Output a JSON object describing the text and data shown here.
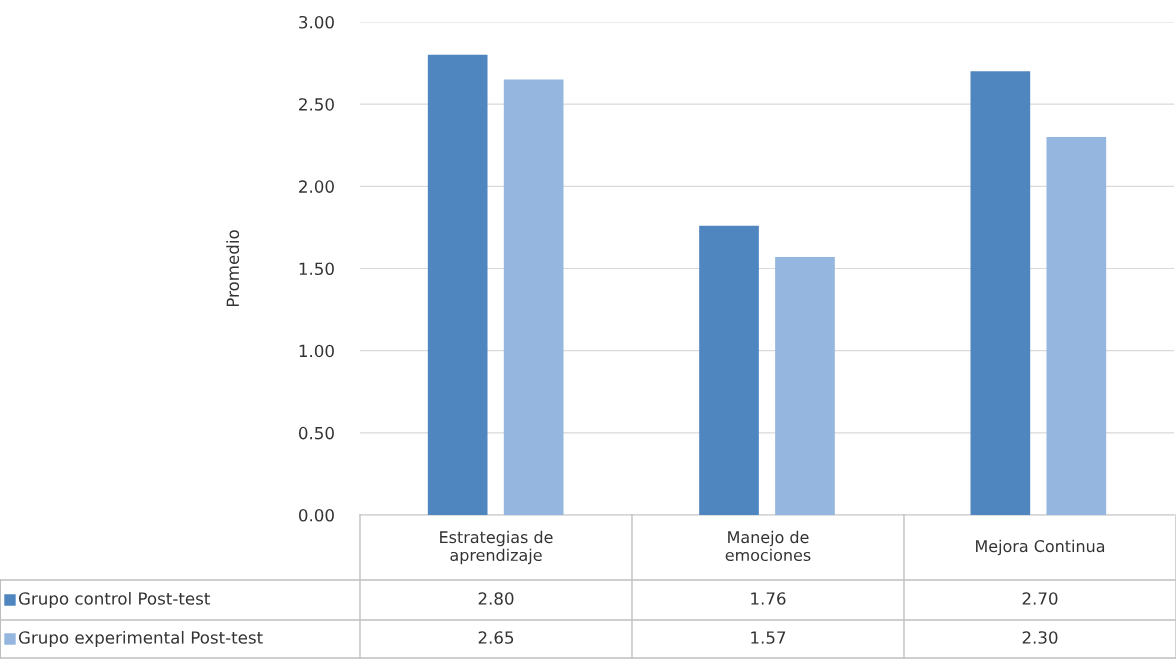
{
  "chart_data": {
    "type": "bar",
    "ylabel": "Promedio",
    "categories": [
      "Estrategias de\naprendizaje",
      "Manejo de\nemociones",
      "Mejora Continua"
    ],
    "series": [
      {
        "name": "Grupo control Post-test",
        "color": "#4f86c0",
        "values": [
          2.8,
          1.76,
          2.7
        ],
        "value_labels": [
          "2.80",
          "1.76",
          "2.70"
        ]
      },
      {
        "name": "Grupo experimental Post-test",
        "color": "#95b7df",
        "values": [
          2.65,
          1.57,
          2.3
        ],
        "value_labels": [
          "2.65",
          "1.57",
          "2.30"
        ]
      }
    ],
    "ylim": [
      0,
      3
    ],
    "yticks": [
      {
        "value": 0,
        "label": "0.00"
      },
      {
        "value": 0.5,
        "label": "0.50"
      },
      {
        "value": 1,
        "label": "1.00"
      },
      {
        "value": 1.5,
        "label": "1.50"
      },
      {
        "value": 2,
        "label": "2.00"
      },
      {
        "value": 2.5,
        "label": "2.50"
      },
      {
        "value": 3,
        "label": "3.00"
      }
    ],
    "grid": "y",
    "legend": "bottom left"
  }
}
